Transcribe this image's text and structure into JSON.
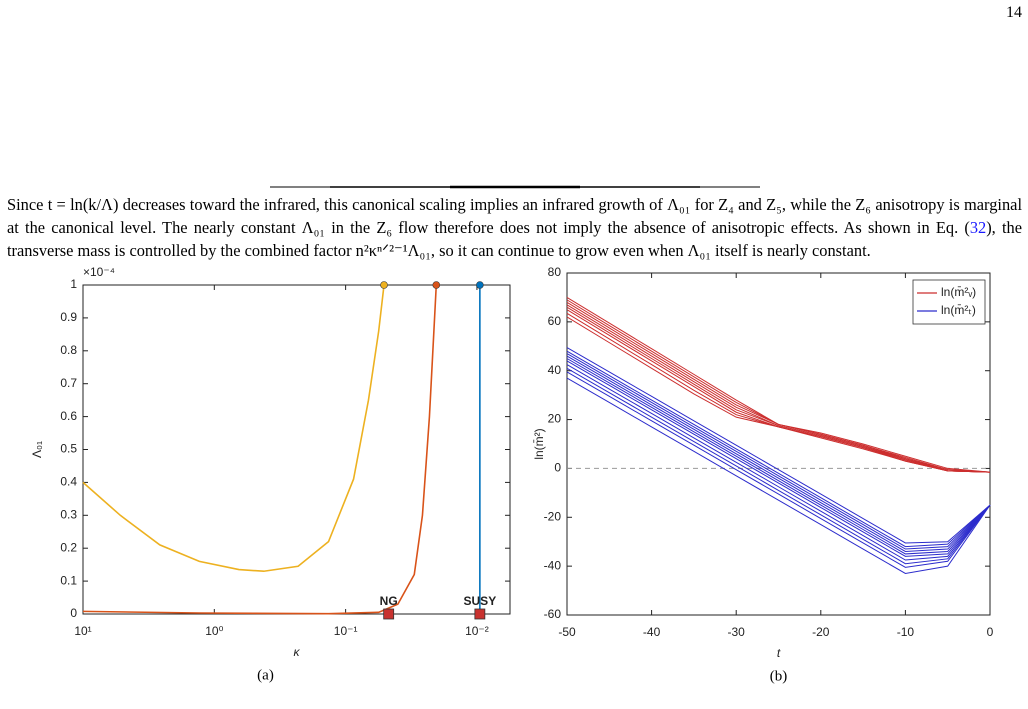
{
  "page_number": "14",
  "paragraph": {
    "text_before": "Since t = ln(k/Λ) decreases toward the infrared, this canonical scaling implies an infrared growth of Λ₀₁ for Z₄ and Z₅, while the Z₆ anisotropy is marginal at the canonical level. The nearly constant Λ₀₁ in the Z₆ flow therefore does not imply the absence of anisotropic effects. As shown in Eq. (",
    "eq_ref": "32",
    "text_after": "), the transverse mass is controlled by the combined factor n²κⁿᐟ²⁻¹Λ₀₁, so it can continue to grow even when Λ₀₁ itself is nearly constant."
  },
  "chart_data": [
    {
      "type": "line",
      "caption": "(a)",
      "xlabel": "κ",
      "ylabel": "Λ₀₁",
      "y_multiplier": "×10⁻⁴",
      "x_scale": "log",
      "xlim": [
        10,
        0.0056
      ],
      "ylim": [
        0,
        1
      ],
      "xticks": [
        {
          "value": 10,
          "label": "10¹"
        },
        {
          "value": 1,
          "label": "10⁰"
        },
        {
          "value": 0.1,
          "label": "10⁻¹"
        },
        {
          "value": 0.01,
          "label": "10⁻²"
        }
      ],
      "yticks": [
        0,
        0.1,
        0.2,
        0.3,
        0.4,
        0.5,
        0.6,
        0.7,
        0.8,
        0.9,
        1
      ],
      "series": [
        {
          "color": "#EDB120",
          "x": [
            10,
            5.2,
            2.6,
            1.3,
            0.65,
            0.42,
            0.23,
            0.135,
            0.087,
            0.067,
            0.056,
            0.051
          ],
          "values": [
            0.4,
            0.3,
            0.21,
            0.16,
            0.135,
            0.13,
            0.145,
            0.22,
            0.41,
            0.65,
            0.86,
            1
          ]
        },
        {
          "color": "#D95319",
          "x": [
            10,
            1.3,
            0.135,
            0.056,
            0.04,
            0.03,
            0.026,
            0.023,
            0.0204
          ],
          "values": [
            0.008,
            0.003,
            0.001,
            0.005,
            0.03,
            0.12,
            0.3,
            0.6,
            1
          ]
        },
        {
          "color": "#0072BD",
          "x": [
            0.0095,
            0.0095
          ],
          "values": [
            0,
            1
          ]
        }
      ],
      "markers": [
        {
          "label": "NG",
          "x": 0.047,
          "y": 0,
          "color": "#C8322F"
        },
        {
          "label": "SUSY",
          "x": 0.0095,
          "y": 0,
          "color": "#C8322F"
        }
      ]
    },
    {
      "type": "line",
      "caption": "(b)",
      "xlabel": "t",
      "ylabel": "ln(m̄²)",
      "legend": "top-right",
      "x": [
        -50,
        -45,
        -40,
        -35,
        -30,
        -25,
        -20,
        -15,
        -10,
        -5,
        0
      ],
      "xlim": [
        -50,
        0
      ],
      "ylim": [
        -60,
        80
      ],
      "xticks": [
        -50,
        -40,
        -30,
        -20,
        -10,
        0
      ],
      "yticks": [
        -60,
        -40,
        -20,
        0,
        20,
        40,
        60,
        80
      ],
      "hline": 0,
      "series": [
        {
          "name": "ln(m̄²ᵥ)",
          "color": "#CC2E2E",
          "values": [
            [
              70,
              59.5,
              49,
              38.5,
              28,
              18,
              14.5,
              10,
              5,
              0,
              -1.5
            ],
            [
              69,
              58.5,
              48,
              37.5,
              27,
              18,
              14,
              9.5,
              4.5,
              -0.5,
              -1.5
            ],
            [
              68,
              57.5,
              47,
              36.5,
              26,
              18,
              14,
              9.5,
              4,
              -0.5,
              -1.5
            ],
            [
              67,
              56.5,
              46,
              35.5,
              25,
              17.5,
              13.5,
              9,
              4,
              -1,
              -1.5
            ],
            [
              66,
              55.5,
              45,
              34.5,
              24,
              17.5,
              13.5,
              9,
              3.5,
              -1,
              -1.5
            ],
            [
              65,
              54.5,
              44,
              33.5,
              23,
              17,
              13,
              8.5,
              3.5,
              -1,
              -1.5
            ],
            [
              63.5,
              53,
              42.5,
              32,
              22,
              17,
              13,
              8.5,
              3,
              -1,
              -1.5
            ],
            [
              62,
              51.5,
              41,
              30.5,
              21,
              17,
              12.5,
              8,
              3,
              -1,
              -1.5
            ]
          ]
        },
        {
          "name": "ln(m̄²ₜ)",
          "color": "#2C2CCC",
          "values": [
            [
              49.5,
              39.5,
              29.5,
              19.5,
              9.5,
              -0.5,
              -10.5,
              -20.5,
              -30.5,
              -30,
              -15
            ],
            [
              48,
              38,
              28,
              18,
              8,
              -2,
              -12,
              -22,
              -32,
              -31,
              -15
            ],
            [
              47,
              37,
              27,
              17,
              7,
              -3,
              -13,
              -23,
              -33,
              -32,
              -15
            ],
            [
              46,
              36,
              26,
              16,
              6,
              -4,
              -14,
              -24,
              -34,
              -33,
              -15
            ],
            [
              45,
              35,
              25,
              15,
              5,
              -5,
              -15,
              -25,
              -35,
              -34,
              -15
            ],
            [
              44,
              34,
              24,
              14,
              4,
              -6,
              -16,
              -26,
              -36,
              -35,
              -15
            ],
            [
              42.5,
              32.5,
              22.5,
              12.5,
              2.5,
              -7.5,
              -17.5,
              -27.5,
              -37.5,
              -36,
              -15
            ],
            [
              41,
              31,
              21,
              11,
              1,
              -9,
              -19,
              -29,
              -39,
              -37,
              -15
            ],
            [
              39.5,
              29.5,
              19.5,
              9.5,
              -0.5,
              -10.5,
              -20.5,
              -30.5,
              -40.5,
              -38,
              -15
            ],
            [
              37,
              27,
              17,
              7,
              -3,
              -13,
              -23,
              -33,
              -43,
              -40,
              -15
            ]
          ]
        }
      ]
    }
  ]
}
